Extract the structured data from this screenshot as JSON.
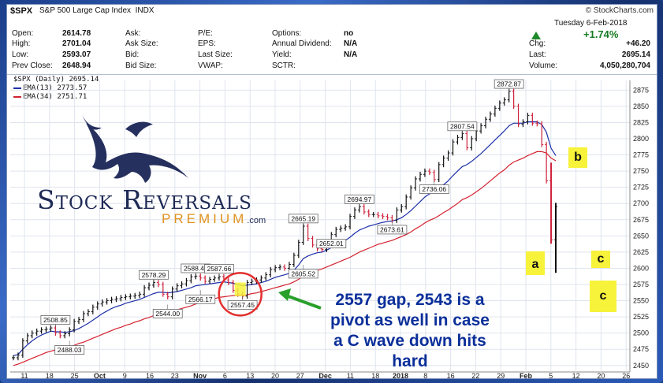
{
  "header": {
    "symbol": "$SPX",
    "name": "S&P 500 Large Cap Index",
    "exchange": "INDX",
    "brand": "© StockCharts.com",
    "date": "Tuesday   6-Feb-2018",
    "pct_change": "+1.74%"
  },
  "quote_left": [
    {
      "label": "Open:",
      "value": "2614.78"
    },
    {
      "label": "High:",
      "value": "2701.04"
    },
    {
      "label": "Low:",
      "value": "2593.07"
    },
    {
      "label": "Prev Close:",
      "value": "2648.94"
    }
  ],
  "quote_mid": [
    "Ask:",
    "Ask Size:",
    "Bid:",
    "Bid Size:"
  ],
  "quote_mid2": [
    "P/E:",
    "EPS:",
    "Last Size:",
    "VWAP:"
  ],
  "quote_right": [
    {
      "label": "Options:",
      "value": "no"
    },
    {
      "label": "Annual Dividend:",
      "value": "N/A"
    },
    {
      "label": "Yield:",
      "value": "N/A"
    },
    {
      "label": "SCTR:",
      "value": ""
    }
  ],
  "quote_far": [
    {
      "label": "Chg:",
      "value": "+46.20"
    },
    {
      "label": "Last:",
      "value": "2695.14"
    },
    {
      "label": "Volume:",
      "value": "4,050,280,704"
    }
  ],
  "legend": {
    "main": "$SPX (Daily) 2695.14",
    "ema13": "EMA(13) 2773.57",
    "ema34": "EMA(34) 2751.71",
    "ema13_color": "#1c2fa8",
    "ema34_color": "#d4222f"
  },
  "logo": {
    "line1": "Stock Reversals",
    "line2": "PREMIUM",
    "suffix": ".com"
  },
  "annotation": {
    "line1": "2557  gap, 2543 is a",
    "line2": "pivot as well in case",
    "line3": "a C wave down hits",
    "line4": "hard"
  },
  "wave_labels": {
    "b": "b",
    "a": "a",
    "c1": "c",
    "c2": "c"
  },
  "colors": {
    "up": "#111111",
    "down": "#d0203a",
    "grid": "#dfe4ee",
    "highlight": "#f7f23a",
    "arrow": "#2aa02a",
    "circle": "#e2302f"
  },
  "chart_data": {
    "type": "line",
    "title": "$SPX (Daily)",
    "ylim": [
      2440,
      2890
    ],
    "y_ticks": [
      2450,
      2475,
      2500,
      2525,
      2550,
      2575,
      2600,
      2625,
      2650,
      2675,
      2700,
      2725,
      2750,
      2775,
      2800,
      2825,
      2850,
      2875
    ],
    "x_tick_labels": [
      "11",
      "18",
      "25",
      "Oct",
      "9",
      "16",
      "23",
      "Nov",
      "6",
      "13",
      "20",
      "27",
      "Dec",
      "11",
      "18",
      "2018",
      "8",
      "16",
      "22",
      "29",
      "Feb",
      "5",
      "12",
      "20",
      "26"
    ],
    "series": [
      {
        "name": "$SPX (Daily)",
        "values": [
          2462,
          2466,
          2488,
          2496,
          2500,
          2503,
          2505,
          2506,
          2508,
          2500,
          2496,
          2499,
          2505,
          2518,
          2521,
          2530,
          2533,
          2540,
          2545,
          2548,
          2550,
          2552,
          2553,
          2555,
          2556,
          2557,
          2558,
          2560,
          2570,
          2574,
          2578,
          2575,
          2560,
          2556,
          2568,
          2573,
          2576,
          2581,
          2587,
          2588,
          2585,
          2580,
          2583,
          2585,
          2587,
          2582,
          2578,
          2566,
          2560,
          2557,
          2578,
          2580,
          2582,
          2585,
          2590,
          2598,
          2601,
          2602,
          2600,
          2606,
          2620,
          2640,
          2665,
          2646,
          2636,
          2630,
          2629,
          2640,
          2652,
          2660,
          2662,
          2664,
          2680,
          2690,
          2695,
          2687,
          2683,
          2683,
          2681,
          2680,
          2678,
          2674,
          2690,
          2695,
          2710,
          2724,
          2738,
          2745,
          2750,
          2748,
          2737,
          2760,
          2770,
          2778,
          2795,
          2802,
          2808,
          2786,
          2800,
          2812,
          2820,
          2830,
          2838,
          2847,
          2855,
          2860,
          2873,
          2850,
          2822,
          2826,
          2836,
          2824,
          2823,
          2791,
          2735,
          2644,
          2695
        ]
      },
      {
        "name": "EMA(13)",
        "values": [
          2465,
          2467,
          2475,
          2482,
          2488,
          2493,
          2497,
          2500,
          2503,
          2502,
          2502,
          2501,
          2502,
          2504,
          2507,
          2511,
          2515,
          2520,
          2525,
          2530,
          2534,
          2538,
          2541,
          2543,
          2546,
          2548,
          2550,
          2552,
          2555,
          2558,
          2561,
          2563,
          2563,
          2562,
          2563,
          2564,
          2566,
          2568,
          2570,
          2573,
          2574,
          2575,
          2576,
          2577,
          2578,
          2579,
          2578,
          2577,
          2575,
          2573,
          2574,
          2575,
          2576,
          2578,
          2580,
          2583,
          2586,
          2588,
          2590,
          2592,
          2597,
          2605,
          2615,
          2619,
          2622,
          2624,
          2625,
          2628,
          2632,
          2636,
          2640,
          2643,
          2648,
          2654,
          2659,
          2662,
          2665,
          2667,
          2669,
          2671,
          2672,
          2673,
          2675,
          2678,
          2683,
          2689,
          2696,
          2703,
          2710,
          2715,
          2718,
          2723,
          2729,
          2735,
          2743,
          2750,
          2757,
          2760,
          2765,
          2771,
          2777,
          2784,
          2791,
          2798,
          2805,
          2812,
          2820,
          2824,
          2824,
          2824,
          2826,
          2826,
          2826,
          2822,
          2810,
          2785,
          2774
        ]
      },
      {
        "name": "EMA(34)",
        "values": [
          2450,
          2452,
          2455,
          2458,
          2461,
          2464,
          2467,
          2470,
          2472,
          2474,
          2476,
          2477,
          2479,
          2481,
          2484,
          2486,
          2489,
          2492,
          2495,
          2498,
          2501,
          2504,
          2507,
          2509,
          2512,
          2514,
          2517,
          2519,
          2522,
          2524,
          2527,
          2529,
          2531,
          2532,
          2534,
          2536,
          2538,
          2540,
          2542,
          2545,
          2547,
          2549,
          2551,
          2553,
          2555,
          2556,
          2557,
          2558,
          2558,
          2558,
          2559,
          2561,
          2562,
          2564,
          2566,
          2568,
          2570,
          2572,
          2574,
          2576,
          2579,
          2583,
          2588,
          2592,
          2595,
          2597,
          2599,
          2602,
          2605,
          2608,
          2611,
          2614,
          2617,
          2621,
          2625,
          2628,
          2631,
          2634,
          2637,
          2639,
          2641,
          2643,
          2646,
          2649,
          2652,
          2656,
          2661,
          2665,
          2670,
          2674,
          2677,
          2681,
          2686,
          2690,
          2695,
          2700,
          2706,
          2709,
          2713,
          2718,
          2723,
          2729,
          2735,
          2741,
          2747,
          2752,
          2759,
          2764,
          2767,
          2770,
          2774,
          2777,
          2780,
          2780,
          2778,
          2770,
          2766
        ]
      }
    ],
    "price_labels": [
      {
        "text": "2508.85",
        "value": 2508.85,
        "index": 9
      },
      {
        "text": "2488.03",
        "value": 2488.03,
        "index": 12
      },
      {
        "text": "2578.29",
        "value": 2578.29,
        "index": 30
      },
      {
        "text": "2544.00",
        "value": 2544.0,
        "index": 33
      },
      {
        "text": "2588.40",
        "value": 2588.4,
        "index": 39
      },
      {
        "text": "2566.17",
        "value": 2566.17,
        "index": 40
      },
      {
        "text": "2587.66",
        "value": 2587.66,
        "index": 44
      },
      {
        "text": "2557.45",
        "value": 2557.45,
        "index": 49
      },
      {
        "text": "2665.19",
        "value": 2665.19,
        "index": 62
      },
      {
        "text": "2605.52",
        "value": 2605.52,
        "index": 62
      },
      {
        "text": "2652.01",
        "value": 2652.01,
        "index": 68
      },
      {
        "text": "2694.97",
        "value": 2694.97,
        "index": 74
      },
      {
        "text": "2673.61",
        "value": 2673.61,
        "index": 81
      },
      {
        "text": "2736.06",
        "value": 2736.06,
        "index": 90
      },
      {
        "text": "2807.54",
        "value": 2807.54,
        "index": 96
      },
      {
        "text": "2872.87",
        "value": 2872.87,
        "index": 106
      }
    ]
  }
}
